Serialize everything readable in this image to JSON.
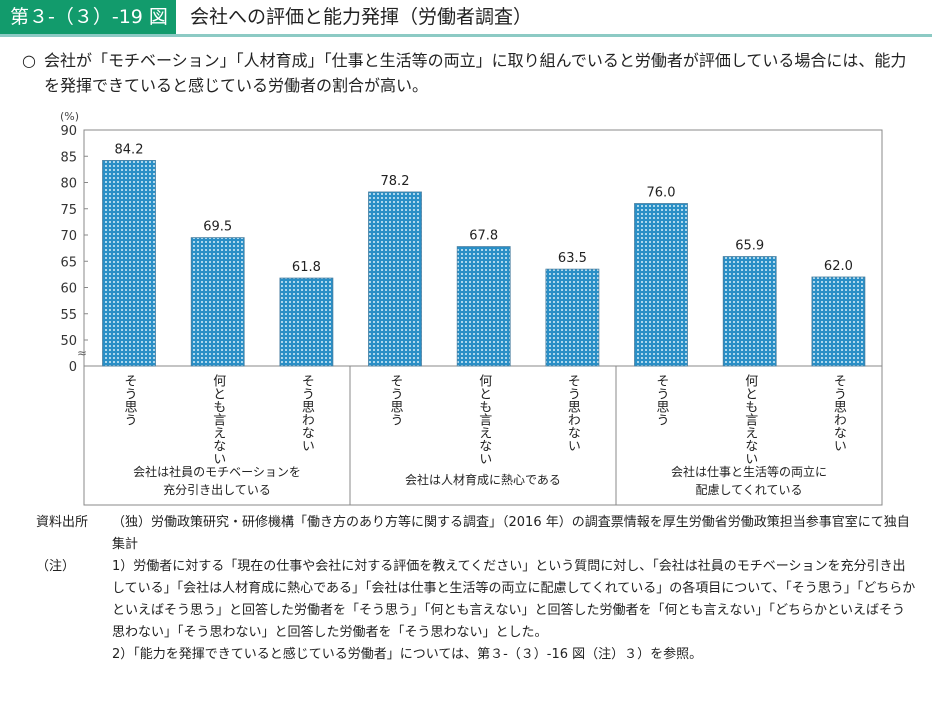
{
  "header": {
    "number": "第３-（３）-19 図",
    "title": "会社への評価と能力発揮（労働者調査）"
  },
  "lead": {
    "mark": "○",
    "text": "会社が「モチベーション」「人材育成」「仕事と生活等の両立」に取り組んでいると労働者が評価している場合には、能力を発揮できていると感じている労働者の割合が高い。"
  },
  "chart_data": {
    "type": "bar",
    "ylabel": "(%)",
    "ylim": [
      50,
      90
    ],
    "y_break": "0 〜 50",
    "yticks": [
      0,
      50,
      55,
      60,
      65,
      70,
      75,
      80,
      85,
      90
    ],
    "groups": [
      {
        "label_lines": [
          "会社は社員のモチベーションを",
          "充分引き出している"
        ],
        "categories": [
          "そう思う",
          "何とも言えない",
          "そう思わない"
        ],
        "values": [
          84.2,
          69.5,
          61.8
        ]
      },
      {
        "label_lines": [
          "会社は人材育成に熱心である"
        ],
        "categories": [
          "そう思う",
          "何とも言えない",
          "そう思わない"
        ],
        "values": [
          78.2,
          67.8,
          63.5
        ]
      },
      {
        "label_lines": [
          "会社は仕事と生活等の両立に",
          "配慮してくれている"
        ],
        "categories": [
          "そう思う",
          "何とも言えない",
          "そう思わない"
        ],
        "values": [
          76.0,
          65.9,
          62.0
        ]
      }
    ],
    "bar_color": "#2a8fc6"
  },
  "notes": {
    "source_label": "資料出所",
    "source": "（独）労働政策研究・研修機構「働き方のあり方等に関する調査」（2016 年）の調査票情報を厚生労働省労働政策担当参事官室にて独自集計",
    "note_label": "（注）",
    "note1": "1）労働者に対する「現在の仕事や会社に対する評価を教えてください」という質問に対し、「会社は社員のモチベーションを充分引き出している」「会社は人材育成に熱心である」「会社は仕事と生活等の両立に配慮してくれている」の各項目について、「そう思う」「どちらかといえばそう思う」と回答した労働者を「そう思う」「何とも言えない」と回答した労働者を「何とも言えない」「どちらかといえばそう思わない」「そう思わない」と回答した労働者を「そう思わない」とした。",
    "note2": "2）「能力を発揮できていると感じている労働者」については、第３-（３）-16 図（注）３）を参照。"
  }
}
